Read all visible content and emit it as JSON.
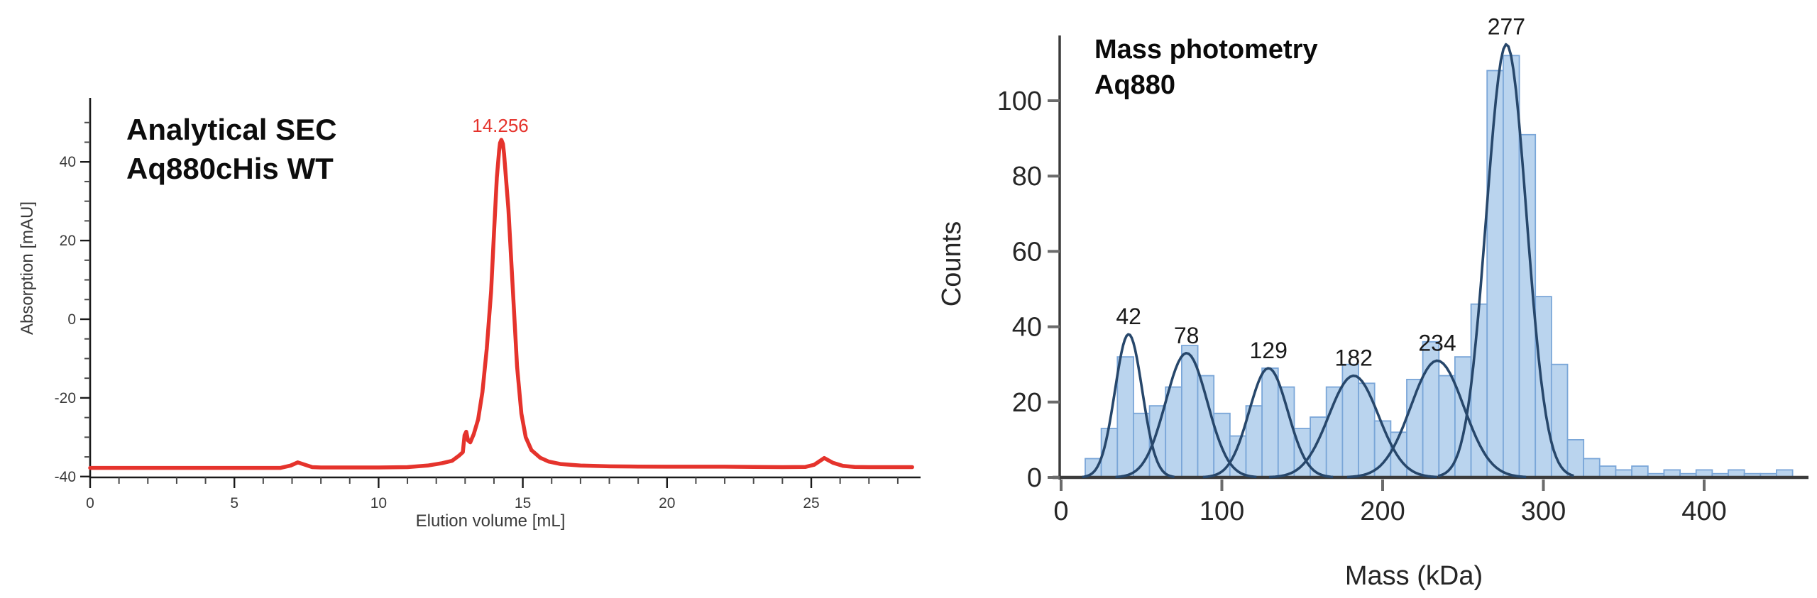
{
  "page": {
    "background": "#ffffff"
  },
  "chart_data": [
    {
      "id": "sec",
      "type": "line",
      "title": "Analytical SEC Aq880cHis WT",
      "title_lines": [
        "Analytical SEC",
        "Aq880cHis WT"
      ],
      "xlabel": "Elution volume [mL]",
      "ylabel": "Absorption [mAU]",
      "xlim": [
        0,
        28.8
      ],
      "ylim": [
        -40,
        56
      ],
      "x_major_ticks": [
        0,
        5,
        10,
        15,
        20,
        25
      ],
      "x_minor_step": 1,
      "x_minor_max": 28,
      "y_major_ticks": [
        -40,
        -20,
        0,
        20,
        40
      ],
      "y_minor_step": 5,
      "y_minor_min": -40,
      "y_minor_max": 50,
      "grid": false,
      "line_color": "#e5332c",
      "axis_color": "#1a1a1a",
      "peak_annotation": {
        "text": "14.256",
        "x": 14.256,
        "y": 45.6
      },
      "points": [
        [
          0,
          -37.8
        ],
        [
          1,
          -37.8
        ],
        [
          2,
          -37.8
        ],
        [
          3,
          -37.8
        ],
        [
          4,
          -37.8
        ],
        [
          5,
          -37.8
        ],
        [
          6,
          -37.8
        ],
        [
          6.6,
          -37.8
        ],
        [
          6.95,
          -37.2
        ],
        [
          7.2,
          -36.4
        ],
        [
          7.45,
          -37.0
        ],
        [
          7.7,
          -37.6
        ],
        [
          8,
          -37.7
        ],
        [
          9,
          -37.7
        ],
        [
          10,
          -37.7
        ],
        [
          11,
          -37.6
        ],
        [
          11.7,
          -37.2
        ],
        [
          12.2,
          -36.6
        ],
        [
          12.55,
          -36.0
        ],
        [
          12.8,
          -34.6
        ],
        [
          12.92,
          -33.8
        ],
        [
          12.98,
          -29.5
        ],
        [
          13.04,
          -28.6
        ],
        [
          13.1,
          -30.8
        ],
        [
          13.18,
          -31.3
        ],
        [
          13.3,
          -29.2
        ],
        [
          13.45,
          -25.5
        ],
        [
          13.6,
          -18.5
        ],
        [
          13.75,
          -7.5
        ],
        [
          13.9,
          7
        ],
        [
          14.0,
          22
        ],
        [
          14.1,
          36
        ],
        [
          14.18,
          43
        ],
        [
          14.21,
          44.8
        ],
        [
          14.256,
          45.6
        ],
        [
          14.31,
          44.6
        ],
        [
          14.35,
          42
        ],
        [
          14.5,
          28
        ],
        [
          14.65,
          8
        ],
        [
          14.8,
          -12
        ],
        [
          14.95,
          -24
        ],
        [
          15.1,
          -30
        ],
        [
          15.3,
          -33.3
        ],
        [
          15.6,
          -35.2
        ],
        [
          15.9,
          -36.2
        ],
        [
          16.3,
          -36.8
        ],
        [
          17,
          -37.2
        ],
        [
          18,
          -37.4
        ],
        [
          19,
          -37.45
        ],
        [
          20,
          -37.5
        ],
        [
          21,
          -37.5
        ],
        [
          22,
          -37.5
        ],
        [
          23,
          -37.55
        ],
        [
          24,
          -37.6
        ],
        [
          24.8,
          -37.55
        ],
        [
          25.1,
          -37.0
        ],
        [
          25.45,
          -35.3
        ],
        [
          25.75,
          -36.5
        ],
        [
          26.1,
          -37.3
        ],
        [
          26.5,
          -37.55
        ],
        [
          27,
          -37.6
        ],
        [
          28,
          -37.6
        ],
        [
          28.5,
          -37.6
        ]
      ]
    },
    {
      "id": "mp",
      "type": "histogram_with_gaussian_fits",
      "title": "Mass photometry Aq880",
      "title_lines": [
        "Mass photometry",
        "Aq880"
      ],
      "xlabel": "Mass (kDa)",
      "ylabel": "Counts",
      "xlim": [
        0,
        465
      ],
      "ylim": [
        0,
        117
      ],
      "x_major_ticks": [
        0,
        100,
        200,
        300,
        400
      ],
      "y_major_ticks": [
        0,
        20,
        40,
        60,
        80,
        100
      ],
      "grid": false,
      "bar_fill": "#bad4ee",
      "bar_stroke": "#7aa6d8",
      "fit_color": "#27476b",
      "axis_color": "#3b3b3b",
      "tick_color": "#6b6b6b",
      "bin_width": 10,
      "bins": [
        {
          "start": 15,
          "count": 5
        },
        {
          "start": 25,
          "count": 13
        },
        {
          "start": 35,
          "count": 32
        },
        {
          "start": 45,
          "count": 17
        },
        {
          "start": 55,
          "count": 19
        },
        {
          "start": 65,
          "count": 24
        },
        {
          "start": 75,
          "count": 35
        },
        {
          "start": 85,
          "count": 27
        },
        {
          "start": 95,
          "count": 17
        },
        {
          "start": 105,
          "count": 11
        },
        {
          "start": 115,
          "count": 19
        },
        {
          "start": 125,
          "count": 29
        },
        {
          "start": 135,
          "count": 24
        },
        {
          "start": 145,
          "count": 13
        },
        {
          "start": 155,
          "count": 16
        },
        {
          "start": 165,
          "count": 24
        },
        {
          "start": 175,
          "count": 30
        },
        {
          "start": 185,
          "count": 25
        },
        {
          "start": 195,
          "count": 15
        },
        {
          "start": 205,
          "count": 12
        },
        {
          "start": 215,
          "count": 26
        },
        {
          "start": 225,
          "count": 36
        },
        {
          "start": 235,
          "count": 27
        },
        {
          "start": 245,
          "count": 32
        },
        {
          "start": 255,
          "count": 46
        },
        {
          "start": 265,
          "count": 108
        },
        {
          "start": 275,
          "count": 112
        },
        {
          "start": 285,
          "count": 91
        },
        {
          "start": 295,
          "count": 48
        },
        {
          "start": 305,
          "count": 30
        },
        {
          "start": 315,
          "count": 10
        },
        {
          "start": 325,
          "count": 5
        },
        {
          "start": 335,
          "count": 3
        },
        {
          "start": 345,
          "count": 2
        },
        {
          "start": 355,
          "count": 3
        },
        {
          "start": 365,
          "count": 1
        },
        {
          "start": 375,
          "count": 2
        },
        {
          "start": 385,
          "count": 1
        },
        {
          "start": 395,
          "count": 2
        },
        {
          "start": 405,
          "count": 1
        },
        {
          "start": 415,
          "count": 2
        },
        {
          "start": 425,
          "count": 1
        },
        {
          "start": 435,
          "count": 1
        },
        {
          "start": 445,
          "count": 2
        }
      ],
      "fits": [
        {
          "label": "42",
          "mean": 42,
          "height": 38,
          "sigma": 8.5
        },
        {
          "label": "78",
          "mean": 78,
          "height": 33,
          "sigma": 13
        },
        {
          "label": "129",
          "mean": 129,
          "height": 29,
          "sigma": 12
        },
        {
          "label": "182",
          "mean": 182,
          "height": 27,
          "sigma": 15.5
        },
        {
          "label": "234",
          "mean": 234,
          "height": 31,
          "sigma": 16.5
        },
        {
          "label": "277",
          "mean": 277,
          "height": 115,
          "sigma": 12.5
        }
      ]
    }
  ]
}
